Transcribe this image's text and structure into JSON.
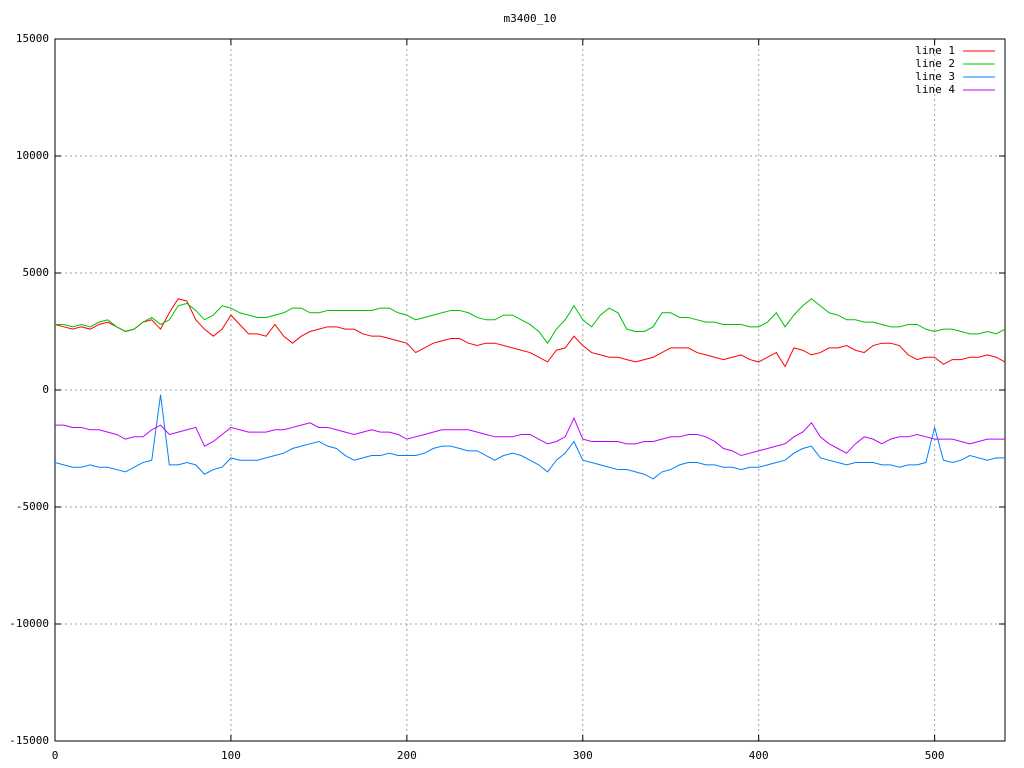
{
  "chart_data": {
    "type": "line",
    "title": "m3400_10",
    "x": [
      0,
      5,
      10,
      15,
      20,
      25,
      30,
      35,
      40,
      45,
      50,
      55,
      60,
      65,
      70,
      75,
      80,
      85,
      90,
      95,
      100,
      105,
      110,
      115,
      120,
      125,
      130,
      135,
      140,
      145,
      150,
      155,
      160,
      165,
      170,
      175,
      180,
      185,
      190,
      195,
      200,
      205,
      210,
      215,
      220,
      225,
      230,
      235,
      240,
      245,
      250,
      255,
      260,
      265,
      270,
      275,
      280,
      285,
      290,
      295,
      300,
      305,
      310,
      315,
      320,
      325,
      330,
      335,
      340,
      345,
      350,
      355,
      360,
      365,
      370,
      375,
      380,
      385,
      390,
      395,
      400,
      405,
      410,
      415,
      420,
      425,
      430,
      435,
      440,
      445,
      450,
      455,
      460,
      465,
      470,
      475,
      480,
      485,
      490,
      495,
      500,
      505,
      510,
      515,
      520,
      525,
      530,
      535,
      540
    ],
    "series": [
      {
        "name": "line 1",
        "color": "#ff0000",
        "values": [
          2800,
          2700,
          2600,
          2700,
          2600,
          2800,
          2900,
          2700,
          2500,
          2600,
          2900,
          3000,
          2600,
          3300,
          3900,
          3800,
          3000,
          2600,
          2300,
          2600,
          3200,
          2800,
          2400,
          2400,
          2300,
          2800,
          2300,
          2000,
          2300,
          2500,
          2600,
          2700,
          2700,
          2600,
          2600,
          2400,
          2300,
          2300,
          2200,
          2100,
          2000,
          1600,
          1800,
          2000,
          2100,
          2200,
          2200,
          2000,
          1900,
          2000,
          2000,
          1900,
          1800,
          1700,
          1600,
          1400,
          1200,
          1700,
          1800,
          2300,
          1900,
          1600,
          1500,
          1400,
          1400,
          1300,
          1200,
          1300,
          1400,
          1600,
          1800,
          1800,
          1800,
          1600,
          1500,
          1400,
          1300,
          1400,
          1500,
          1300,
          1200,
          1400,
          1600,
          1000,
          1800,
          1700,
          1500,
          1600,
          1800,
          1800,
          1900,
          1700,
          1600,
          1900,
          2000,
          2000,
          1900,
          1500,
          1300,
          1400,
          1400,
          1100,
          1300,
          1300,
          1400,
          1400,
          1500,
          1400,
          1200
        ]
      },
      {
        "name": "line 2",
        "color": "#00c000",
        "values": [
          2800,
          2800,
          2700,
          2800,
          2700,
          2900,
          3000,
          2700,
          2500,
          2600,
          2900,
          3100,
          2800,
          3000,
          3600,
          3700,
          3400,
          3000,
          3200,
          3600,
          3500,
          3300,
          3200,
          3100,
          3100,
          3200,
          3300,
          3500,
          3500,
          3300,
          3300,
          3400,
          3400,
          3400,
          3400,
          3400,
          3400,
          3500,
          3500,
          3300,
          3200,
          3000,
          3100,
          3200,
          3300,
          3400,
          3400,
          3300,
          3100,
          3000,
          3000,
          3200,
          3200,
          3000,
          2800,
          2500,
          2000,
          2600,
          3000,
          3600,
          3000,
          2700,
          3200,
          3500,
          3300,
          2600,
          2500,
          2500,
          2700,
          3300,
          3300,
          3100,
          3100,
          3000,
          2900,
          2900,
          2800,
          2800,
          2800,
          2700,
          2700,
          2900,
          3300,
          2700,
          3200,
          3600,
          3900,
          3600,
          3300,
          3200,
          3000,
          3000,
          2900,
          2900,
          2800,
          2700,
          2700,
          2800,
          2800,
          2600,
          2500,
          2600,
          2600,
          2500,
          2400,
          2400,
          2500,
          2400,
          2600
        ]
      },
      {
        "name": "line 3",
        "color": "#0080ff",
        "values": [
          -3100,
          -3200,
          -3300,
          -3300,
          -3200,
          -3300,
          -3300,
          -3400,
          -3500,
          -3300,
          -3100,
          -3000,
          -200,
          -3200,
          -3200,
          -3100,
          -3200,
          -3600,
          -3400,
          -3300,
          -2900,
          -3000,
          -3000,
          -3000,
          -2900,
          -2800,
          -2700,
          -2500,
          -2400,
          -2300,
          -2200,
          -2400,
          -2500,
          -2800,
          -3000,
          -2900,
          -2800,
          -2800,
          -2700,
          -2800,
          -2800,
          -2800,
          -2700,
          -2500,
          -2400,
          -2400,
          -2500,
          -2600,
          -2600,
          -2800,
          -3000,
          -2800,
          -2700,
          -2800,
          -3000,
          -3200,
          -3500,
          -3000,
          -2700,
          -2200,
          -3000,
          -3100,
          -3200,
          -3300,
          -3400,
          -3400,
          -3500,
          -3600,
          -3800,
          -3500,
          -3400,
          -3200,
          -3100,
          -3100,
          -3200,
          -3200,
          -3300,
          -3300,
          -3400,
          -3300,
          -3300,
          -3200,
          -3100,
          -3000,
          -2700,
          -2500,
          -2400,
          -2900,
          -3000,
          -3100,
          -3200,
          -3100,
          -3100,
          -3100,
          -3200,
          -3200,
          -3300,
          -3200,
          -3200,
          -3100,
          -1600,
          -3000,
          -3100,
          -3000,
          -2800,
          -2900,
          -3000,
          -2900,
          -2900
        ]
      },
      {
        "name": "line 4",
        "color": "#c000ff",
        "values": [
          -1500,
          -1500,
          -1600,
          -1600,
          -1700,
          -1700,
          -1800,
          -1900,
          -2100,
          -2000,
          -2000,
          -1700,
          -1500,
          -1900,
          -1800,
          -1700,
          -1600,
          -2400,
          -2200,
          -1900,
          -1600,
          -1700,
          -1800,
          -1800,
          -1800,
          -1700,
          -1700,
          -1600,
          -1500,
          -1400,
          -1600,
          -1600,
          -1700,
          -1800,
          -1900,
          -1800,
          -1700,
          -1800,
          -1800,
          -1900,
          -2100,
          -2000,
          -1900,
          -1800,
          -1700,
          -1700,
          -1700,
          -1700,
          -1800,
          -1900,
          -2000,
          -2000,
          -2000,
          -1900,
          -1900,
          -2100,
          -2300,
          -2200,
          -2000,
          -1200,
          -2100,
          -2200,
          -2200,
          -2200,
          -2200,
          -2300,
          -2300,
          -2200,
          -2200,
          -2100,
          -2000,
          -2000,
          -1900,
          -1900,
          -2000,
          -2200,
          -2500,
          -2600,
          -2800,
          -2700,
          -2600,
          -2500,
          -2400,
          -2300,
          -2000,
          -1800,
          -1400,
          -2000,
          -2300,
          -2500,
          -2700,
          -2300,
          -2000,
          -2100,
          -2300,
          -2100,
          -2000,
          -2000,
          -1900,
          -2000,
          -2100,
          -2100,
          -2100,
          -2200,
          -2300,
          -2200,
          -2100,
          -2100,
          -2100
        ]
      }
    ],
    "xlim": [
      0,
      540
    ],
    "xticks": [
      0,
      100,
      200,
      300,
      400,
      500
    ],
    "ylim": [
      -15000,
      15000
    ],
    "yticks": [
      -15000,
      -10000,
      -5000,
      0,
      5000,
      10000,
      15000
    ],
    "grid": true,
    "legend": "top-right"
  }
}
